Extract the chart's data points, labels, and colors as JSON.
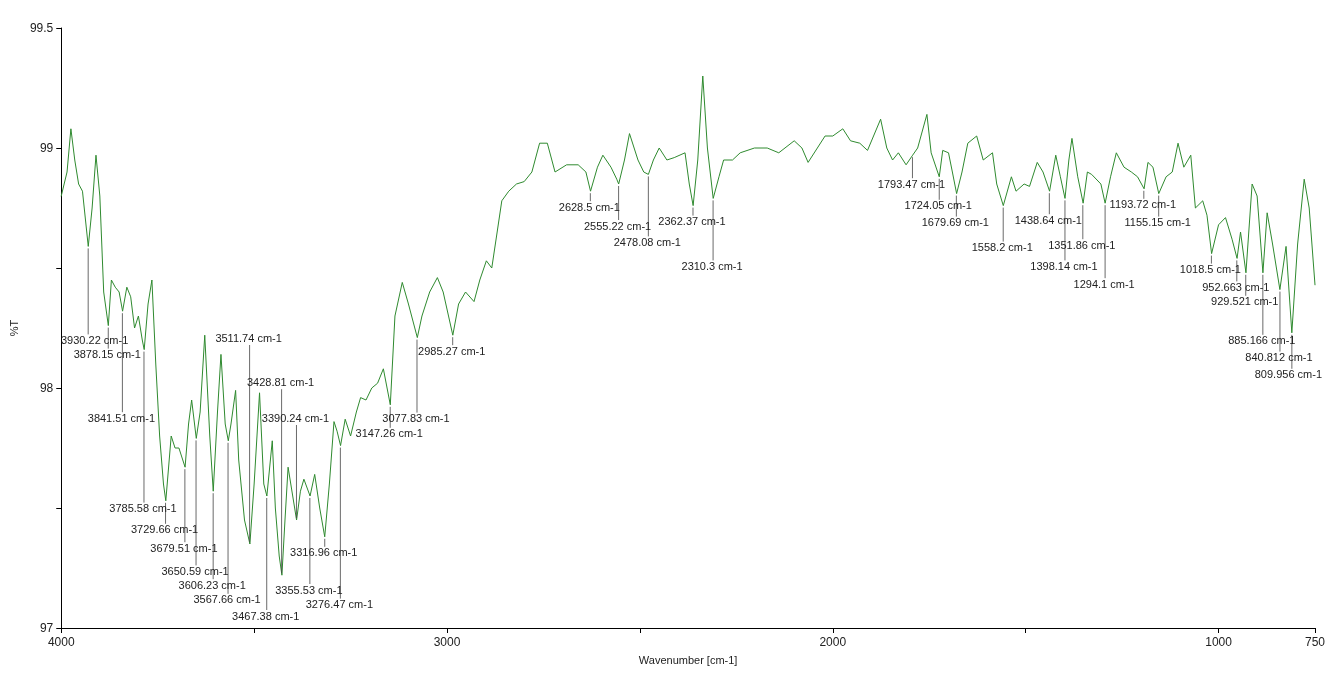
{
  "chart_data": {
    "type": "line",
    "xlabel": "Wavenumber [cm-1]",
    "ylabel": "%T",
    "xlim": [
      4000,
      750
    ],
    "xticks": [
      4000,
      {
        "value": 3500,
        "label": null
      },
      3000,
      {
        "value": 2500,
        "label": null
      },
      2000,
      {
        "value": 1500,
        "label": null
      },
      1000,
      750
    ],
    "ylim": [
      97,
      99.5
    ],
    "yticks": [
      97,
      {
        "value": 97.5,
        "label": null
      },
      98,
      {
        "value": 98.5,
        "label": null
      },
      99,
      99.5
    ],
    "grid": false,
    "marker": "none",
    "line_style": "solid",
    "series": [
      {
        "color": "#2f8a2f",
        "x": [
          4000,
          3985,
          3975,
          3965,
          3955,
          3945,
          3930,
          3920,
          3910,
          3900,
          3890,
          3878,
          3870,
          3860,
          3850,
          3841,
          3830,
          3820,
          3810,
          3800,
          3790,
          3785,
          3775,
          3765,
          3755,
          3745,
          3735,
          3729,
          3715,
          3705,
          3695,
          3679,
          3670,
          3662,
          3650,
          3640,
          3628,
          3615,
          3606,
          3595,
          3586,
          3575,
          3567,
          3560,
          3548,
          3540,
          3525,
          3511,
          3500,
          3486,
          3475,
          3467,
          3453,
          3445,
          3435,
          3428,
          3420,
          3412,
          3400,
          3390,
          3380,
          3371,
          3355,
          3343,
          3330,
          3317,
          3305,
          3293,
          3285,
          3276,
          3264,
          3250,
          3235,
          3224,
          3210,
          3195,
          3180,
          3165,
          3147,
          3135,
          3116,
          3100,
          3077,
          3065,
          3045,
          3025,
          3010,
          2985,
          2970,
          2952,
          2930,
          2915,
          2898,
          2884,
          2870,
          2858,
          2840,
          2820,
          2800,
          2780,
          2760,
          2740,
          2720,
          2690,
          2660,
          2640,
          2628,
          2610,
          2596,
          2575,
          2560,
          2555,
          2540,
          2527,
          2505,
          2490,
          2478,
          2465,
          2450,
          2430,
          2411,
          2383,
          2372,
          2362,
          2350,
          2337,
          2325,
          2310,
          2295,
          2283,
          2260,
          2240,
          2203,
          2170,
          2140,
          2100,
          2080,
          2064,
          2040,
          2020,
          2000,
          1974,
          1954,
          1930,
          1910,
          1876,
          1860,
          1845,
          1830,
          1810,
          1793,
          1780,
          1756,
          1745,
          1724,
          1715,
          1700,
          1690,
          1679,
          1665,
          1650,
          1627,
          1610,
          1586,
          1575,
          1558,
          1537,
          1525,
          1504,
          1490,
          1470,
          1455,
          1438,
          1422,
          1410,
          1398,
          1388,
          1380,
          1365,
          1351,
          1340,
          1329,
          1305,
          1294,
          1280,
          1265,
          1245,
          1226,
          1210,
          1193,
          1183,
          1170,
          1155,
          1136,
          1120,
          1105,
          1090,
          1072,
          1060,
          1041,
          1030,
          1018,
          1000,
          982,
          965,
          952,
          943,
          929,
          913,
          900,
          885,
          874,
          860,
          841,
          825,
          810,
          795,
          778,
          765,
          750
        ],
        "values": [
          98.8,
          98.9,
          99.08,
          98.95,
          98.85,
          98.82,
          98.59,
          98.75,
          98.97,
          98.8,
          98.4,
          98.26,
          98.45,
          98.42,
          98.4,
          98.32,
          98.42,
          98.38,
          98.25,
          98.3,
          98.2,
          98.16,
          98.35,
          98.45,
          98.1,
          97.8,
          97.6,
          97.53,
          97.8,
          97.75,
          97.75,
          97.67,
          97.85,
          97.95,
          97.79,
          97.9,
          98.22,
          97.8,
          97.57,
          97.9,
          98.14,
          97.85,
          97.78,
          97.85,
          97.99,
          97.7,
          97.45,
          97.35,
          97.6,
          97.98,
          97.6,
          97.55,
          97.78,
          97.5,
          97.3,
          97.22,
          97.45,
          97.67,
          97.55,
          97.45,
          97.57,
          97.62,
          97.55,
          97.64,
          97.5,
          97.38,
          97.6,
          97.86,
          97.82,
          97.76,
          97.87,
          97.8,
          97.9,
          97.96,
          97.95,
          98.0,
          98.02,
          98.08,
          97.93,
          98.3,
          98.44,
          98.35,
          98.21,
          98.3,
          98.4,
          98.46,
          98.4,
          98.22,
          98.35,
          98.4,
          98.36,
          98.45,
          98.53,
          98.5,
          98.65,
          98.78,
          98.82,
          98.85,
          98.86,
          98.9,
          99.02,
          99.02,
          98.9,
          98.93,
          98.93,
          98.9,
          98.82,
          98.92,
          98.97,
          98.92,
          98.87,
          98.85,
          98.95,
          99.06,
          98.95,
          98.9,
          98.89,
          98.95,
          99.0,
          98.95,
          98.96,
          98.98,
          98.85,
          98.76,
          98.95,
          99.3,
          99.0,
          98.79,
          98.88,
          98.95,
          98.95,
          98.98,
          99.0,
          99.0,
          98.98,
          99.03,
          99.0,
          98.94,
          99.0,
          99.05,
          99.05,
          99.08,
          99.03,
          99.02,
          98.99,
          99.12,
          99.0,
          98.95,
          98.98,
          98.93,
          98.97,
          99.0,
          99.14,
          98.98,
          98.88,
          98.99,
          98.98,
          98.9,
          98.81,
          98.9,
          99.02,
          99.05,
          98.95,
          98.98,
          98.85,
          98.76,
          98.88,
          98.82,
          98.85,
          98.84,
          98.94,
          98.9,
          98.82,
          98.97,
          98.88,
          98.79,
          98.95,
          99.04,
          98.88,
          98.77,
          98.9,
          98.89,
          98.85,
          98.77,
          98.88,
          98.98,
          98.92,
          98.9,
          98.88,
          98.83,
          98.94,
          98.92,
          98.81,
          98.88,
          98.9,
          99.02,
          98.92,
          98.97,
          98.75,
          98.78,
          98.72,
          98.56,
          98.68,
          98.71,
          98.62,
          98.54,
          98.65,
          98.48,
          98.85,
          98.8,
          98.48,
          98.73,
          98.6,
          98.41,
          98.59,
          98.23,
          98.6,
          98.87,
          98.75,
          98.43
        ]
      }
    ],
    "annotations": [
      {
        "text": "3930.22 cm-1",
        "x": 3930.22,
        "y": 98.59
      },
      {
        "text": "3878.15 cm-1",
        "x": 3878.15,
        "y": 98.26
      },
      {
        "text": "3841.51 cm-1",
        "x": 3841.51,
        "y": 98.32
      },
      {
        "text": "3785.58 cm-1",
        "x": 3785.58,
        "y": 98.16
      },
      {
        "text": "3729.66 cm-1",
        "x": 3729.66,
        "y": 97.53
      },
      {
        "text": "3679.51 cm-1",
        "x": 3679.51,
        "y": 97.67
      },
      {
        "text": "3650.59 cm-1",
        "x": 3650.59,
        "y": 97.79
      },
      {
        "text": "3606.23 cm-1",
        "x": 3606.23,
        "y": 97.57
      },
      {
        "text": "3567.66 cm-1",
        "x": 3567.66,
        "y": 97.78
      },
      {
        "text": "3511.74 cm-1",
        "x": 3511.74,
        "y": 97.35
      },
      {
        "text": "3467.38 cm-1",
        "x": 3467.38,
        "y": 97.55
      },
      {
        "text": "3428.81 cm-1",
        "x": 3428.81,
        "y": 97.22
      },
      {
        "text": "3390.24 cm-1",
        "x": 3390.24,
        "y": 97.45
      },
      {
        "text": "3355.53 cm-1",
        "x": 3355.53,
        "y": 97.55
      },
      {
        "text": "3316.96 cm-1",
        "x": 3316.96,
        "y": 97.38
      },
      {
        "text": "3276.47 cm-1",
        "x": 3276.47,
        "y": 97.76
      },
      {
        "text": "3147.26 cm-1",
        "x": 3147.26,
        "y": 97.93
      },
      {
        "text": "3077.83 cm-1",
        "x": 3077.83,
        "y": 98.21
      },
      {
        "text": "2985.27 cm-1",
        "x": 2985.27,
        "y": 98.22
      },
      {
        "text": "2628.5 cm-1",
        "x": 2628.5,
        "y": 98.82
      },
      {
        "text": "2555.22 cm-1",
        "x": 2555.22,
        "y": 98.85
      },
      {
        "text": "2478.08 cm-1",
        "x": 2478.08,
        "y": 98.89
      },
      {
        "text": "2362.37 cm-1",
        "x": 2362.37,
        "y": 98.76
      },
      {
        "text": "2310.3 cm-1",
        "x": 2310.3,
        "y": 98.79
      },
      {
        "text": "1793.47 cm-1",
        "x": 1793.47,
        "y": 98.97
      },
      {
        "text": "1724.05 cm-1",
        "x": 1724.05,
        "y": 98.88
      },
      {
        "text": "1679.69 cm-1",
        "x": 1679.69,
        "y": 98.81
      },
      {
        "text": "1558.2 cm-1",
        "x": 1558.2,
        "y": 98.76
      },
      {
        "text": "1438.64 cm-1",
        "x": 1438.64,
        "y": 98.82
      },
      {
        "text": "1398.14 cm-1",
        "x": 1398.14,
        "y": 98.79
      },
      {
        "text": "1351.86 cm-1",
        "x": 1351.86,
        "y": 98.77
      },
      {
        "text": "1294.1 cm-1",
        "x": 1294.1,
        "y": 98.77
      },
      {
        "text": "1193.72 cm-1",
        "x": 1193.72,
        "y": 98.83
      },
      {
        "text": "1155.15 cm-1",
        "x": 1155.15,
        "y": 98.81
      },
      {
        "text": "1018.5 cm-1",
        "x": 1018.5,
        "y": 98.56
      },
      {
        "text": "952.663 cm-1",
        "x": 952.663,
        "y": 98.54
      },
      {
        "text": "929.521 cm-1",
        "x": 929.521,
        "y": 98.48
      },
      {
        "text": "885.166 cm-1",
        "x": 885.166,
        "y": 98.48
      },
      {
        "text": "840.812 cm-1",
        "x": 840.812,
        "y": 98.41
      },
      {
        "text": "809.956 cm-1",
        "x": 809.956,
        "y": 98.23
      }
    ]
  }
}
